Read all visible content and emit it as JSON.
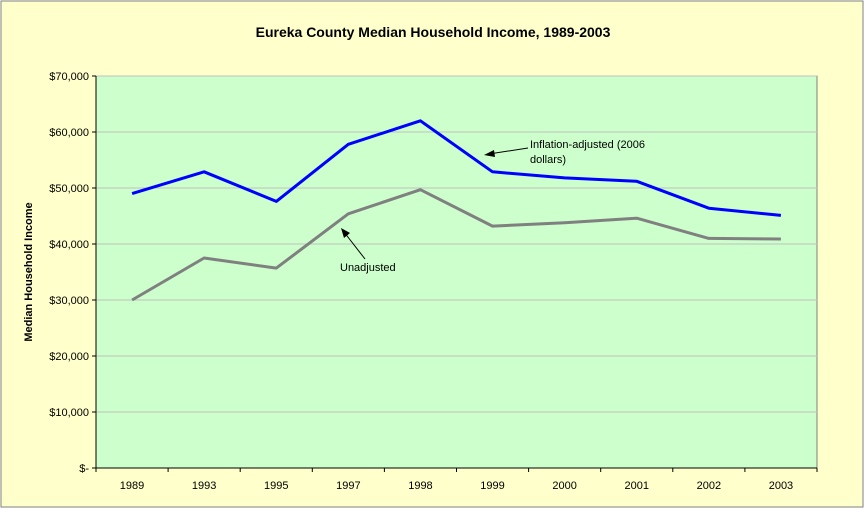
{
  "chart_data": {
    "type": "line",
    "title": "Eureka County Median Household Income, 1989-2003",
    "xlabel": "",
    "ylabel": "Median Household Income",
    "categories": [
      "1989",
      "1993",
      "1995",
      "1997",
      "1998",
      "1999",
      "2000",
      "2001",
      "2002",
      "2003"
    ],
    "ylim": [
      0,
      70000
    ],
    "y_ticks": [
      0,
      10000,
      20000,
      30000,
      40000,
      50000,
      60000,
      70000
    ],
    "y_tick_labels": [
      "$-",
      "$10,000",
      "$20,000",
      "$30,000",
      "$40,000",
      "$50,000",
      "$60,000",
      "$70,000"
    ],
    "grid": true,
    "legend": "none",
    "series": [
      {
        "values": [
          49000,
          52900,
          47600,
          57800,
          62000,
          52900,
          51800,
          51200,
          46400,
          45100
        ],
        "color": "#0000ff"
      },
      {
        "values": [
          30000,
          37500,
          35700,
          45400,
          49700,
          43200,
          43800,
          44600,
          41000,
          40900
        ],
        "color": "#808080"
      }
    ],
    "annotations": [
      {
        "line1": "Inflation-adjusted (2006",
        "line2": "dollars)"
      },
      {
        "line1": "Unadjusted"
      }
    ],
    "colors": {
      "outer_background": "#ffffcc",
      "plot_background": "#ccffcc",
      "gridline": "#c0c0c0"
    }
  }
}
